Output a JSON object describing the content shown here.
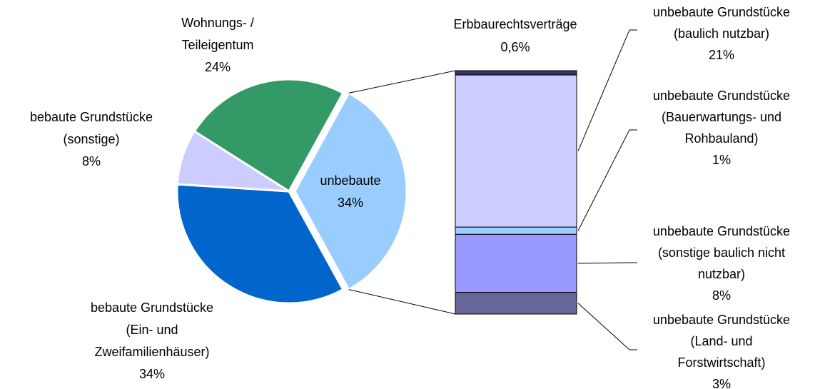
{
  "chart_data": {
    "type": "pie-of-bar",
    "pie": {
      "labels": [
        [
          "unbebaute"
        ],
        [
          "bebaute Grundstücke",
          "(Ein- und",
          "Zweifamilienhäuser)"
        ],
        [
          "bebaute Grundstücke",
          "(sonstige)"
        ],
        [
          "Wohnungs- /",
          "Teileigentum"
        ]
      ],
      "values": [
        34,
        34,
        8,
        24
      ],
      "value_labels": [
        "34%",
        "34%",
        "8%",
        "24%"
      ],
      "colors": [
        "#99ccff",
        "#0066cc",
        "#ccccff",
        "#339966"
      ]
    },
    "bar": {
      "labels": [
        [
          "Erbbaurechtsverträge"
        ],
        [
          "unbebaute Grundstücke",
          "(baulich nutzbar)"
        ],
        [
          "unbebaute Grundstücke",
          "(Bauerwartungs- und",
          "Rohbauland)"
        ],
        [
          "unbebaute Grundstücke",
          "(sonstige baulich nicht",
          "nutzbar)"
        ],
        [
          "unbebaute Grundstücke",
          "(Land- und",
          "Forstwirtschaft)"
        ]
      ],
      "values": [
        0.6,
        21,
        1,
        8,
        3
      ],
      "value_labels": [
        "0,6%",
        "21%",
        "1%",
        "8%",
        "3%"
      ],
      "colors": [
        "#333366",
        "#ccccff",
        "#99ccff",
        "#9999ff",
        "#666699"
      ]
    }
  }
}
